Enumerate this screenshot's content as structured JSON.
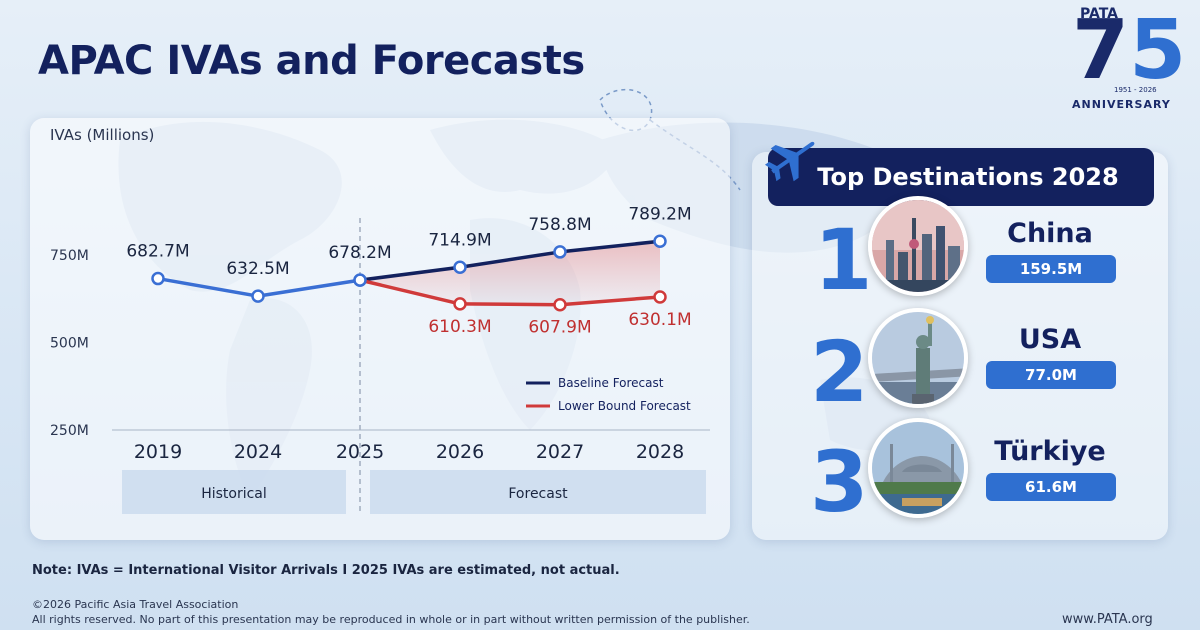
{
  "title": "APAC IVAs and Forecasts",
  "logo": {
    "brand": "PATA",
    "number_a": "7",
    "number_b": "5",
    "years": "1951 - 2026",
    "label": "ANNIVERSARY"
  },
  "chart_data": {
    "type": "line",
    "ylabel": "IVAs (Millions)",
    "categories": [
      "2019",
      "2024",
      "2025",
      "2026",
      "2027",
      "2028"
    ],
    "y_ticks": [
      {
        "value": 250,
        "label": "250M"
      },
      {
        "value": 500,
        "label": "500M"
      },
      {
        "value": 750,
        "label": "750M"
      }
    ],
    "ylim": [
      250,
      900
    ],
    "sections": [
      {
        "label": "Historical",
        "range": [
          "2019",
          "2025"
        ]
      },
      {
        "label": "Forecast",
        "range": [
          "2026",
          "2028"
        ]
      }
    ],
    "series": [
      {
        "name": "",
        "color": "#3a6fd4",
        "points": [
          {
            "x": "2019",
            "y": 682.7,
            "label": "682.7M"
          },
          {
            "x": "2024",
            "y": 632.5,
            "label": "632.5M"
          },
          {
            "x": "2025",
            "y": 678.2,
            "label": "678.2M"
          }
        ]
      },
      {
        "name": "Baseline Forecast",
        "color": "#13215e",
        "points": [
          {
            "x": "2025",
            "y": 678.2,
            "label": ""
          },
          {
            "x": "2026",
            "y": 714.9,
            "label": "714.9M"
          },
          {
            "x": "2027",
            "y": 758.8,
            "label": "758.8M"
          },
          {
            "x": "2028",
            "y": 789.2,
            "label": "789.2M"
          }
        ]
      },
      {
        "name": "Lower Bound Forecast",
        "color": "#d03a3a",
        "points": [
          {
            "x": "2025",
            "y": 678.2,
            "label": ""
          },
          {
            "x": "2026",
            "y": 610.3,
            "label": "610.3M"
          },
          {
            "x": "2027",
            "y": 607.9,
            "label": "607.9M"
          },
          {
            "x": "2028",
            "y": 630.1,
            "label": "630.1M"
          }
        ]
      }
    ],
    "legend": [
      "Baseline Forecast",
      "Lower Bound Forecast"
    ],
    "legend_position": "bottom-right",
    "grid": false
  },
  "destinations": {
    "title": "Top Destinations 2028",
    "items": [
      {
        "rank": "1",
        "country": "China",
        "value": "159.5M",
        "photo": "city-skyline"
      },
      {
        "rank": "2",
        "country": "USA",
        "value": "77.0M",
        "photo": "statue-of-liberty"
      },
      {
        "rank": "3",
        "country": "Türkiye",
        "value": "61.6M",
        "photo": "mosque-waterfront"
      }
    ]
  },
  "note": "Note: IVAs = International Visitor Arrivals  I  2025 IVAs are estimated, not actual.",
  "copyright": "©2026 Pacific Asia Travel Association",
  "rights": "All rights reserved. No part of this presentation may be reproduced in whole or in part without written permission of the publisher.",
  "website": "www.PATA.org"
}
